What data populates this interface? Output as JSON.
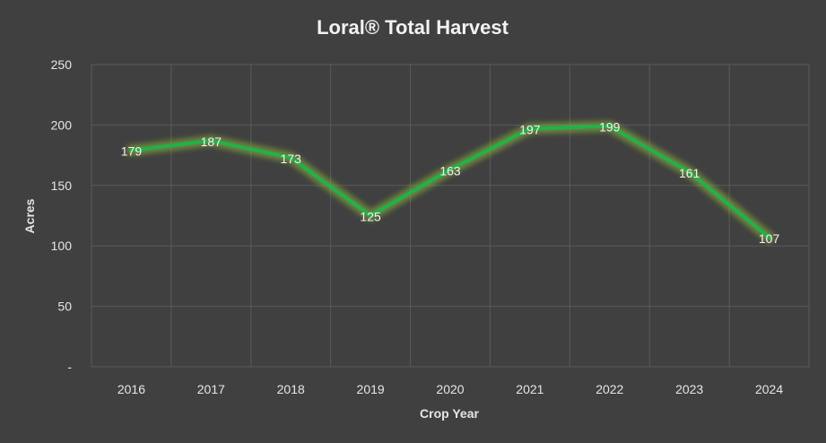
{
  "chart_data": {
    "type": "line",
    "title": "Loral® Total Harvest",
    "xlabel": "Crop Year",
    "ylabel": "Acres",
    "categories": [
      "2016",
      "2017",
      "2018",
      "2019",
      "2020",
      "2021",
      "2022",
      "2023",
      "2024"
    ],
    "series": [
      {
        "values": [
          179,
          187,
          173,
          125,
          163,
          197,
          199,
          161,
          107
        ],
        "color": "#22b14c"
      }
    ],
    "data_labels": [
      "179",
      "187",
      "173",
      "125",
      "163",
      "197",
      "199",
      "161",
      "107"
    ],
    "y_ticks": [
      0,
      50,
      100,
      150,
      200,
      250
    ],
    "y_tick_labels": [
      "-",
      "50",
      "100",
      "150",
      "200",
      "250"
    ],
    "ylim": [
      0,
      250
    ],
    "grid": true,
    "background": "#404040",
    "grid_color": "#5a5a5a",
    "text_color": "#e6e6e6"
  }
}
